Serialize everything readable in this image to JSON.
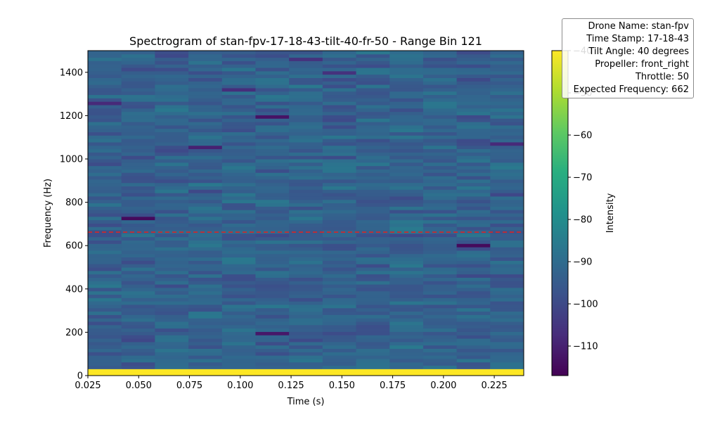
{
  "chart_data": {
    "type": "heatmap",
    "title": "Spectrogram of stan-fpv-17-18-43-tilt-40-fr-50 - Range Bin 121",
    "xlabel": "Time (s)",
    "ylabel": "Frequency (Hz)",
    "xlim": [
      0.025,
      0.2395
    ],
    "ylim": [
      0,
      1500
    ],
    "xticks": [
      0.025,
      0.05,
      0.075,
      0.1,
      0.125,
      0.15,
      0.175,
      0.2,
      0.225
    ],
    "xtick_labels": [
      "0.025",
      "0.050",
      "0.075",
      "0.100",
      "0.125",
      "0.150",
      "0.175",
      "0.200",
      "0.225"
    ],
    "yticks": [
      0,
      200,
      400,
      600,
      800,
      1000,
      1200,
      1400
    ],
    "ytick_labels": [
      "0",
      "200",
      "400",
      "600",
      "800",
      "1000",
      "1200",
      "1400"
    ],
    "time_bins": 13,
    "freq_bin_hz": 15.625,
    "colorbar": {
      "label": "Intensity",
      "range": [
        -117,
        -40
      ],
      "ticks": [
        -110,
        -100,
        -90,
        -80,
        -70,
        -60,
        -50,
        -40
      ],
      "tick_labels": [
        "−110",
        "−100",
        "−90",
        "−80",
        "−70",
        "−60",
        "−50",
        "−40"
      ],
      "colormap": "viridis"
    },
    "bright_band": {
      "freq_max_hz": 31,
      "intensity": -40
    },
    "expected_frequency_line": {
      "freq_hz": 662,
      "color": "#d62728",
      "style": "dashed"
    },
    "notable_low_cells": [
      {
        "time_index": 1,
        "freq_hz": 730,
        "intensity": -115
      },
      {
        "time_index": 11,
        "freq_hz": 595,
        "intensity": -115
      },
      {
        "time_index": 5,
        "freq_hz": 1200,
        "intensity": -113
      },
      {
        "time_index": 5,
        "freq_hz": 190,
        "intensity": -112
      },
      {
        "time_index": 3,
        "freq_hz": 1060,
        "intensity": -110
      },
      {
        "time_index": 0,
        "freq_hz": 1255,
        "intensity": -108
      },
      {
        "time_index": 6,
        "freq_hz": 1465,
        "intensity": -106
      },
      {
        "time_index": 12,
        "freq_hz": 1075,
        "intensity": -108
      },
      {
        "time_index": 4,
        "freq_hz": 1320,
        "intensity": -107
      },
      {
        "time_index": 7,
        "freq_hz": 1395,
        "intensity": -106
      }
    ],
    "typical_intensity_range": [
      -104,
      -82
    ]
  },
  "info_box": {
    "lines": [
      "Drone Name: stan-fpv",
      "Time Stamp: 17-18-43",
      "Tilt Angle: 40 degrees",
      "Propeller: front_right",
      "Throttle: 50",
      "Expected Frequency: 662"
    ]
  }
}
